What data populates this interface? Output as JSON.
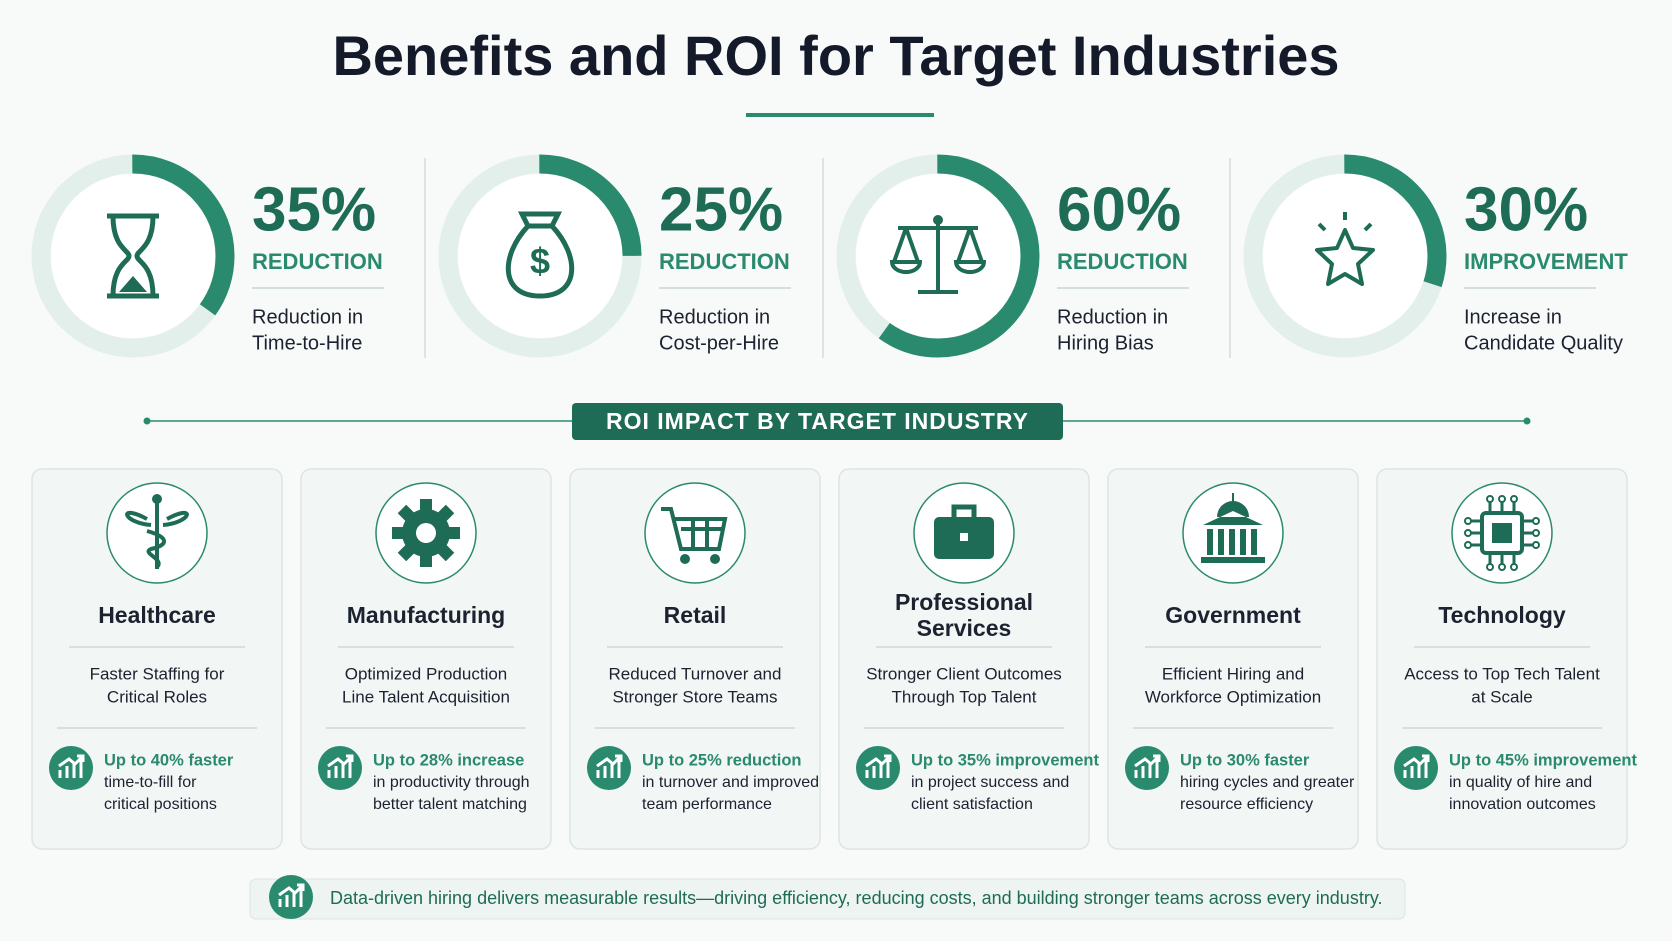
{
  "title": "Benefits and ROI for Target Industries",
  "metrics": [
    {
      "percent": {
        "value": 35,
        "label": "35%"
      },
      "label": "REDUCTION",
      "description": [
        "Reduction in",
        "Time-to-Hire"
      ]
    },
    {
      "percent": {
        "value": 25,
        "label": "25%"
      },
      "label": "REDUCTION",
      "description": [
        "Reduction in",
        "Cost-per-Hire"
      ]
    },
    {
      "percent": {
        "value": 60,
        "label": "60%"
      },
      "label": "REDUCTION",
      "description": [
        "Reduction in",
        "Hiring Bias"
      ]
    },
    {
      "percent": {
        "value": 30,
        "label": "30%"
      },
      "label": "IMPROVEMENT",
      "description": [
        "Increase in",
        "Candidate Quality"
      ]
    }
  ],
  "section_title": "ROI IMPACT BY TARGET INDUSTRY",
  "industries": [
    {
      "name": [
        "Healthcare"
      ],
      "description": [
        "Faster Staffing for",
        "Critical Roles"
      ],
      "stat_highlight": "Up to 40% faster",
      "stat_detail": [
        "time-to-fill for",
        "critical positions"
      ]
    },
    {
      "name": [
        "Manufacturing"
      ],
      "description": [
        "Optimized Production",
        "Line Talent Acquisition"
      ],
      "stat_highlight": "Up to 28% increase",
      "stat_detail": [
        "in productivity through",
        "better talent matching"
      ]
    },
    {
      "name": [
        "Retail"
      ],
      "description": [
        "Reduced Turnover and",
        "Stronger Store Teams"
      ],
      "stat_highlight": "Up to 25% reduction",
      "stat_detail": [
        "in turnover and improved",
        "team performance"
      ]
    },
    {
      "name": [
        "Professional",
        "Services"
      ],
      "description": [
        "Stronger Client Outcomes",
        "Through Top Talent"
      ],
      "stat_highlight": "Up to 35% improvement",
      "stat_detail": [
        "in project success and",
        "client satisfaction"
      ]
    },
    {
      "name": [
        "Government"
      ],
      "description": [
        "Efficient Hiring and",
        "Workforce Optimization"
      ],
      "stat_highlight": "Up to 30% faster",
      "stat_detail": [
        "hiring cycles and greater",
        "resource efficiency"
      ]
    },
    {
      "name": [
        "Technology"
      ],
      "description": [
        "Access to Top Tech Talent",
        "at Scale"
      ],
      "stat_highlight": "Up to 45% improvement",
      "stat_detail": [
        "in quality of hire and",
        "innovation outcomes"
      ]
    }
  ],
  "footer": "Data-driven hiring delivers measurable results—driving efficiency, reducing costs, and building stronger teams across every industry."
}
